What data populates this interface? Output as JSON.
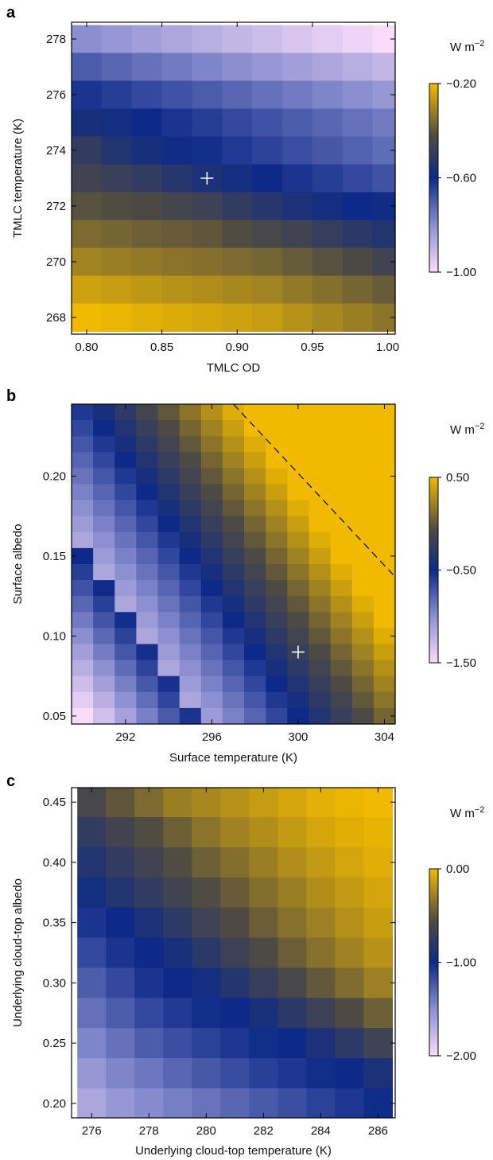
{
  "colors": {
    "low": "#f9dcfb",
    "mid_low": "#8b8fd0",
    "mid": "#0d2a88",
    "mid_high": "#4e4a43",
    "high": "#f1ba00",
    "marker": "#ffffff"
  },
  "chart_data": [
    {
      "type": "heatmap",
      "panel": "a",
      "xlabel": "TMLC OD",
      "ylabel": "TMLC temperature (K)",
      "xlim": [
        0.79,
        1.005
      ],
      "ylim": [
        267.4,
        278.6
      ],
      "x_ticks": [
        "0.80",
        "0.85",
        "0.90",
        "0.95",
        "1.00"
      ],
      "x_tick_values": [
        0.8,
        0.85,
        0.9,
        0.95,
        1.0
      ],
      "y_ticks": [
        "268",
        "270",
        "272",
        "274",
        "276",
        "278"
      ],
      "y_tick_values": [
        268,
        270,
        272,
        274,
        276,
        278
      ],
      "grid_x": [
        0.8,
        0.82,
        0.84,
        0.86,
        0.88,
        0.9,
        0.92,
        0.94,
        0.96,
        0.98,
        1.0
      ],
      "grid_y": [
        278,
        277,
        276,
        275,
        274,
        273,
        272,
        271,
        270,
        269,
        268
      ],
      "values": [
        [
          -0.8,
          -0.82,
          -0.84,
          -0.86,
          -0.88,
          -0.9,
          -0.92,
          -0.94,
          -0.96,
          -0.98,
          -1.0
        ],
        [
          -0.7,
          -0.72,
          -0.74,
          -0.76,
          -0.78,
          -0.8,
          -0.82,
          -0.84,
          -0.86,
          -0.88,
          -0.9
        ],
        [
          -0.62,
          -0.64,
          -0.66,
          -0.68,
          -0.7,
          -0.72,
          -0.74,
          -0.76,
          -0.78,
          -0.8,
          -0.82
        ],
        [
          -0.57,
          -0.58,
          -0.6,
          -0.62,
          -0.64,
          -0.66,
          -0.68,
          -0.7,
          -0.72,
          -0.74,
          -0.76
        ],
        [
          -0.5,
          -0.54,
          -0.57,
          -0.59,
          -0.61,
          -0.63,
          -0.65,
          -0.67,
          -0.69,
          -0.71,
          -0.73
        ],
        [
          -0.46,
          -0.48,
          -0.5,
          -0.53,
          -0.56,
          -0.58,
          -0.6,
          -0.62,
          -0.64,
          -0.66,
          -0.68
        ],
        [
          -0.41,
          -0.42,
          -0.43,
          -0.45,
          -0.47,
          -0.5,
          -0.53,
          -0.56,
          -0.58,
          -0.6,
          -0.59
        ],
        [
          -0.36,
          -0.37,
          -0.38,
          -0.39,
          -0.4,
          -0.42,
          -0.44,
          -0.46,
          -0.49,
          -0.52,
          -0.54
        ],
        [
          -0.31,
          -0.32,
          -0.33,
          -0.34,
          -0.35,
          -0.36,
          -0.37,
          -0.39,
          -0.41,
          -0.43,
          -0.46
        ],
        [
          -0.25,
          -0.26,
          -0.27,
          -0.28,
          -0.29,
          -0.3,
          -0.31,
          -0.33,
          -0.35,
          -0.37,
          -0.39
        ],
        [
          -0.2,
          -0.21,
          -0.22,
          -0.23,
          -0.24,
          -0.25,
          -0.26,
          -0.28,
          -0.3,
          -0.32,
          -0.34
        ]
      ],
      "marker": {
        "x": 0.88,
        "y": 273
      },
      "colorbar": {
        "unit": "W m",
        "unit_exp": "−2",
        "min": -1.0,
        "max": -0.2,
        "ticks": [
          "−0.20",
          "−0.60",
          "−1.00"
        ],
        "tick_values": [
          -0.2,
          -0.6,
          -1.0
        ]
      }
    },
    {
      "type": "heatmap",
      "panel": "b",
      "xlabel": "Surface temperature (K)",
      "ylabel": "Surface albedo",
      "xlim": [
        289.5,
        304.5
      ],
      "ylim": [
        0.045,
        0.245
      ],
      "x_ticks": [
        "292",
        "296",
        "300",
        "304"
      ],
      "x_tick_values": [
        292,
        296,
        300,
        304
      ],
      "y_ticks": [
        "0.05",
        "0.10",
        "0.15",
        "0.20"
      ],
      "y_tick_values": [
        0.05,
        0.1,
        0.15,
        0.2
      ],
      "grid_x": [
        290,
        291,
        292,
        293,
        294,
        295,
        296,
        297,
        298,
        299,
        300,
        301,
        302,
        303,
        304
      ],
      "grid_y": [
        0.24,
        0.23,
        0.22,
        0.21,
        0.2,
        0.19,
        0.18,
        0.17,
        0.16,
        0.15,
        0.14,
        0.13,
        0.12,
        0.11,
        0.1,
        0.09,
        0.08,
        0.07,
        0.06,
        0.05
      ],
      "value_model": "z = -1.5 + 0.19*(T-290) + 10*(a-0.05); values above -0.5 rise toward 0.5 along upper-right",
      "marker": {
        "x": 300,
        "y": 0.09
      },
      "dashed_line": [
        {
          "x": 297,
          "y": 0.245
        },
        {
          "x": 304.5,
          "y": 0.137
        }
      ],
      "colorbar": {
        "unit": "W m",
        "unit_exp": "−2",
        "min": -1.5,
        "max": 0.5,
        "ticks": [
          "0.50",
          "−0.50",
          "−1.50"
        ],
        "tick_values": [
          0.5,
          -0.5,
          -1.5
        ]
      }
    },
    {
      "type": "heatmap",
      "panel": "c",
      "xlabel": "Underlying cloud-top temperature (K)",
      "ylabel": "Underlying cloud-top albedo",
      "xlim": [
        275.3,
        286.6
      ],
      "ylim": [
        0.188,
        0.462
      ],
      "x_ticks": [
        "276",
        "278",
        "280",
        "282",
        "284",
        "286"
      ],
      "x_tick_values": [
        276,
        278,
        280,
        282,
        284,
        286
      ],
      "y_ticks": [
        "0.20",
        "0.25",
        "0.30",
        "0.35",
        "0.40",
        "0.45"
      ],
      "y_tick_values": [
        0.2,
        0.25,
        0.3,
        0.35,
        0.4,
        0.45
      ],
      "grid_x": [
        276,
        277,
        278,
        279,
        280,
        281,
        282,
        283,
        284,
        285,
        286
      ],
      "grid_y": [
        0.45,
        0.425,
        0.4,
        0.375,
        0.35,
        0.325,
        0.3,
        0.275,
        0.25,
        0.225,
        0.2
      ],
      "values": [
        [
          -0.6,
          -0.5,
          -0.4,
          -0.3,
          -0.25,
          -0.2,
          -0.15,
          -0.1,
          -0.05,
          -0.02,
          0.0
        ],
        [
          -0.75,
          -0.65,
          -0.55,
          -0.45,
          -0.35,
          -0.28,
          -0.22,
          -0.16,
          -0.1,
          -0.06,
          -0.03
        ],
        [
          -0.85,
          -0.75,
          -0.65,
          -0.55,
          -0.45,
          -0.38,
          -0.3,
          -0.22,
          -0.16,
          -0.1,
          -0.06
        ],
        [
          -0.95,
          -0.85,
          -0.75,
          -0.65,
          -0.55,
          -0.47,
          -0.38,
          -0.3,
          -0.22,
          -0.16,
          -0.1
        ],
        [
          -1.05,
          -1.0,
          -0.9,
          -0.78,
          -0.66,
          -0.56,
          -0.46,
          -0.37,
          -0.29,
          -0.21,
          -0.14
        ],
        [
          -1.15,
          -1.05,
          -1.0,
          -0.92,
          -0.8,
          -0.68,
          -0.57,
          -0.46,
          -0.37,
          -0.28,
          -0.2
        ],
        [
          -1.25,
          -1.15,
          -1.05,
          -1.0,
          -0.95,
          -0.84,
          -0.72,
          -0.6,
          -0.49,
          -0.39,
          -0.29
        ],
        [
          -1.35,
          -1.25,
          -1.15,
          -1.08,
          -1.02,
          -1.0,
          -0.92,
          -0.8,
          -0.68,
          -0.56,
          -0.45
        ],
        [
          -1.45,
          -1.35,
          -1.25,
          -1.18,
          -1.12,
          -1.06,
          -1.02,
          -1.0,
          -0.9,
          -0.78,
          -0.66
        ],
        [
          -1.55,
          -1.45,
          -1.38,
          -1.3,
          -1.23,
          -1.17,
          -1.11,
          -1.06,
          -1.02,
          -1.0,
          -0.9
        ],
        [
          -1.65,
          -1.55,
          -1.48,
          -1.42,
          -1.36,
          -1.3,
          -1.24,
          -1.18,
          -1.12,
          -1.06,
          -1.01
        ]
      ],
      "colorbar": {
        "unit": "W m",
        "unit_exp": "−2",
        "min": -2.0,
        "max": 0.0,
        "ticks": [
          "0.00",
          "−1.00",
          "−2.00"
        ],
        "tick_values": [
          0.0,
          -1.0,
          -2.0
        ]
      }
    }
  ]
}
